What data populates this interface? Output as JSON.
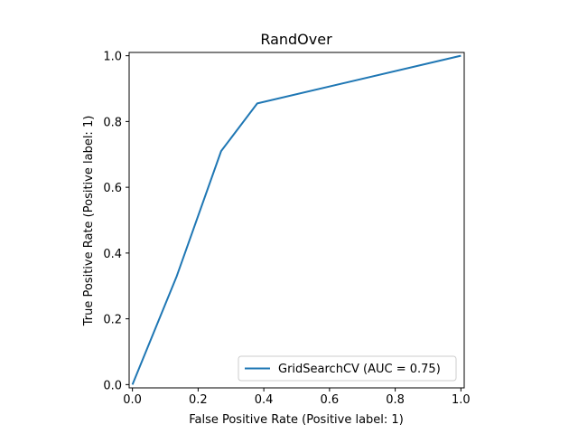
{
  "chart_data": {
    "type": "line",
    "title": "RandOver",
    "xlabel": "False Positive Rate (Positive label: 1)",
    "ylabel": "True Positive Rate (Positive label: 1)",
    "xlim": [
      -0.01,
      1.01
    ],
    "ylim": [
      -0.01,
      1.01
    ],
    "xticks": [
      0.0,
      0.2,
      0.4,
      0.6,
      0.8,
      1.0
    ],
    "xtick_labels": [
      "0.0",
      "0.2",
      "0.4",
      "0.6",
      "0.8",
      "1.0"
    ],
    "yticks": [
      0.0,
      0.2,
      0.4,
      0.6,
      0.8,
      1.0
    ],
    "ytick_labels": [
      "0.0",
      "0.2",
      "0.4",
      "0.6",
      "0.8",
      "1.0"
    ],
    "grid": false,
    "legend_position": "lower-right",
    "series": [
      {
        "name": "GridSearchCV (AUC = 0.75)",
        "color": "#1f77b4",
        "x": [
          0.0,
          0.135,
          0.27,
          0.38,
          1.0
        ],
        "y": [
          0.0,
          0.33,
          0.71,
          0.855,
          1.0
        ]
      }
    ]
  }
}
